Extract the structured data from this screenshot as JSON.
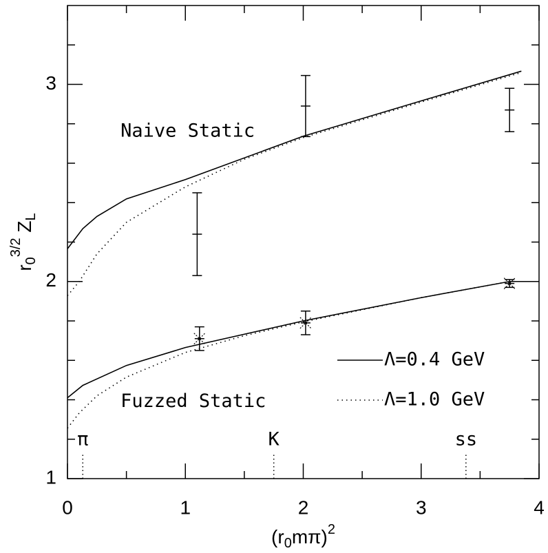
{
  "chart_data": {
    "type": "line",
    "xlim": [
      0,
      4
    ],
    "xticks": [
      0,
      1,
      2,
      3,
      4
    ],
    "xticks_minor": [
      0.5,
      1.5,
      2.5,
      3.5
    ],
    "ylim": [
      1,
      3.4
    ],
    "yticks": [
      1,
      2,
      3
    ],
    "yticks_minor": [
      1.2,
      1.4,
      1.6,
      1.8,
      2.2,
      2.4,
      2.6,
      2.8,
      3.2
    ],
    "xlabel": [
      "(r",
      "0",
      "m",
      "π",
      ")",
      "2"
    ],
    "ylabel": [
      "r",
      "0",
      "3/2",
      " Z",
      "L"
    ],
    "legend_position": "lower right",
    "lines": [
      {
        "name": "Λ=0.4 GeV",
        "style": "solid",
        "color": "#000",
        "curves": [
          {
            "x": [
              0,
              0.13,
              0.25,
              0.5,
              1,
              2,
              3,
              3.85
            ],
            "values": [
              2.166,
              2.268,
              2.33,
              2.419,
              2.517,
              2.737,
              2.916,
              3.067
            ]
          },
          {
            "x": [
              0,
              0.13,
              0.5,
              1,
              2,
              3,
              3.75,
              4
            ],
            "values": [
              1.41,
              1.473,
              1.574,
              1.665,
              1.8,
              1.918,
              2.0,
              2.0
            ]
          }
        ]
      },
      {
        "name": "Λ=1.0 GeV",
        "style": "dotted",
        "color": "#000",
        "curves": [
          {
            "x": [
              0,
              0.1,
              0.25,
              0.5,
              1,
              1.5,
              2,
              3,
              3.85
            ],
            "values": [
              1.928,
              2.0,
              2.14,
              2.3,
              2.48,
              2.62,
              2.73,
              2.91,
              3.06
            ]
          },
          {
            "x": [
              0,
              0.1,
              0.25,
              0.5,
              1,
              1.5,
              2,
              3,
              3.75
            ],
            "values": [
              1.256,
              1.333,
              1.42,
              1.515,
              1.64,
              1.725,
              1.795,
              1.918,
              2.0
            ]
          }
        ]
      }
    ],
    "points": [
      {
        "x": 1.1,
        "value": 2.24,
        "error": 0.21,
        "marker": "plus"
      },
      {
        "x": 2.02,
        "value": 2.89,
        "error": 0.155,
        "marker": "plus"
      },
      {
        "x": 3.75,
        "value": 2.87,
        "error": 0.11,
        "marker": "plus"
      },
      {
        "x": 1.12,
        "value": 1.71,
        "error": 0.06,
        "marker": "star"
      },
      {
        "x": 2.02,
        "value": 1.79,
        "error": 0.06,
        "marker": "star"
      },
      {
        "x": 3.75,
        "value": 1.99,
        "error": 0.02,
        "marker": "star"
      }
    ],
    "annotations": [
      {
        "text": "Naive Static",
        "x": 0.45,
        "y": 2.76
      },
      {
        "text": "Fuzzed Static",
        "x": 0.45,
        "y": 1.39
      }
    ],
    "markers": [
      {
        "label": "π",
        "x": 0.13
      },
      {
        "label": "K",
        "x": 1.75
      },
      {
        "label": "ss",
        "x": 3.38
      }
    ]
  }
}
